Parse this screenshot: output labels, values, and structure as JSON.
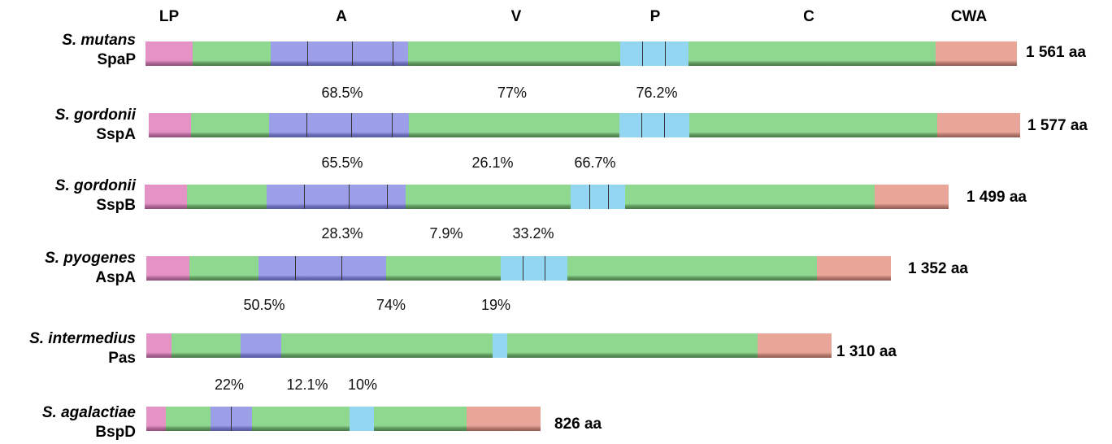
{
  "headers": {
    "lp": "LP",
    "a": "A",
    "v": "V",
    "p": "P",
    "c": "C",
    "cwa": "CWA"
  },
  "proteins": [
    {
      "organism": "S. mutans",
      "protein": "SpaP",
      "length": "1 561 aa"
    },
    {
      "organism": "S. gordonii",
      "protein": "SspA",
      "length": "1 577 aa"
    },
    {
      "organism": "S. gordonii",
      "protein": "SspB",
      "length": "1 499 aa"
    },
    {
      "organism": "S. pyogenes",
      "protein": "AspA",
      "length": "1 352 aa"
    },
    {
      "organism": "S. intermedius",
      "protein": "Pas",
      "length": "1 310 aa"
    },
    {
      "organism": "S. agalactiae",
      "protein": "BspD",
      "length": "826 aa"
    }
  ],
  "identities": [
    {
      "a": "68.5%",
      "v": "77%",
      "p": "76.2%"
    },
    {
      "a": "65.5%",
      "v": "26.1%",
      "p": "66.7%"
    },
    {
      "a": "28.3%",
      "v": "7.9%",
      "p": "33.2%"
    },
    {
      "a": "50.5%",
      "v": "74%",
      "p": "19%"
    },
    {
      "a": "22%",
      "v": "12.1%",
      "p": "10%"
    }
  ],
  "colors": {
    "LP": "#e592c6",
    "A": "#9d9ee8",
    "V": "#8fd88f",
    "P": "#93d6f2",
    "C": "#8fd88f",
    "CWA": "#e8a598"
  }
}
